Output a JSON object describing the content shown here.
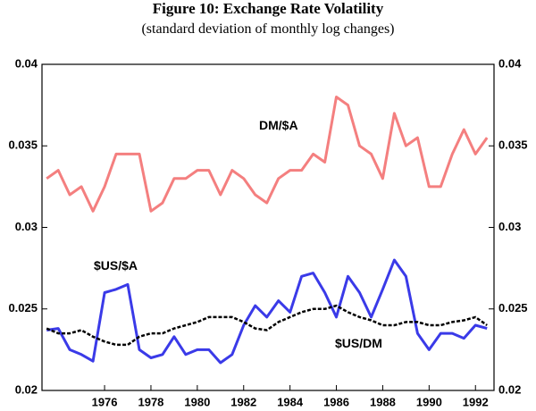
{
  "chart_data": {
    "type": "line",
    "title": "Figure 10: Exchange Rate Volatility",
    "subtitle": "(standard deviation of monthly log changes)",
    "x": [
      1973.5,
      1974,
      1974.5,
      1975,
      1975.5,
      1976,
      1976.5,
      1977,
      1977.5,
      1978,
      1978.5,
      1979,
      1979.5,
      1980,
      1980.5,
      1981,
      1981.5,
      1982,
      1982.5,
      1983,
      1983.5,
      1984,
      1984.5,
      1985,
      1985.5,
      1986,
      1986.5,
      1987,
      1987.5,
      1988,
      1988.5,
      1989,
      1989.5,
      1990,
      1990.5,
      1991,
      1991.5,
      1992,
      1992.5
    ],
    "series": [
      {
        "name": "DM/$A",
        "color": "#f47f7f",
        "values": [
          0.033,
          0.0335,
          0.032,
          0.0325,
          0.031,
          0.0325,
          0.0345,
          0.0345,
          0.0345,
          0.031,
          0.0315,
          0.033,
          0.033,
          0.0335,
          0.0335,
          0.032,
          0.0335,
          0.033,
          0.032,
          0.0315,
          0.033,
          0.0335,
          0.0335,
          0.0345,
          0.034,
          0.038,
          0.0375,
          0.035,
          0.0345,
          0.033,
          0.037,
          0.035,
          0.0355,
          0.0325,
          0.0325,
          0.0345,
          0.036,
          0.0345,
          0.0355
        ]
      },
      {
        "name": "$US/$A",
        "color": "#3a3ae8",
        "values": [
          0.0237,
          0.0238,
          0.0225,
          0.0222,
          0.0218,
          0.026,
          0.0262,
          0.0265,
          0.0225,
          0.022,
          0.0222,
          0.0233,
          0.0222,
          0.0225,
          0.0225,
          0.0217,
          0.0222,
          0.024,
          0.0252,
          0.0245,
          0.0255,
          0.0248,
          0.027,
          0.0272,
          0.026,
          0.0245,
          0.027,
          0.026,
          0.0245,
          0.0262,
          0.028,
          0.027,
          0.0235,
          0.0225,
          0.0235,
          0.0235,
          0.0232,
          0.024,
          0.0238
        ]
      },
      {
        "name": "$US/DM",
        "color": "#000000",
        "values": [
          0.0238,
          0.0235,
          0.0235,
          0.0237,
          0.0233,
          0.023,
          0.0228,
          0.0228,
          0.0233,
          0.0235,
          0.0235,
          0.0238,
          0.024,
          0.0242,
          0.0245,
          0.0245,
          0.0245,
          0.0242,
          0.0238,
          0.0237,
          0.0242,
          0.0245,
          0.0248,
          0.025,
          0.025,
          0.0252,
          0.0248,
          0.0245,
          0.0243,
          0.024,
          0.024,
          0.0242,
          0.0242,
          0.024,
          0.024,
          0.0242,
          0.0243,
          0.0245,
          0.024
        ]
      }
    ],
    "xlim": [
      1973.3,
      1992.8
    ],
    "xticks": [
      1976,
      1978,
      1980,
      1982,
      1984,
      1986,
      1988,
      1990,
      1992
    ],
    "ylim": [
      0.02,
      0.04
    ],
    "yticks": [
      0.02,
      0.025,
      0.03,
      0.035,
      0.04
    ],
    "y2lim": [
      0.02,
      0.04
    ],
    "y2ticks": [
      0.02,
      0.025,
      0.03,
      0.035,
      0.04
    ]
  }
}
